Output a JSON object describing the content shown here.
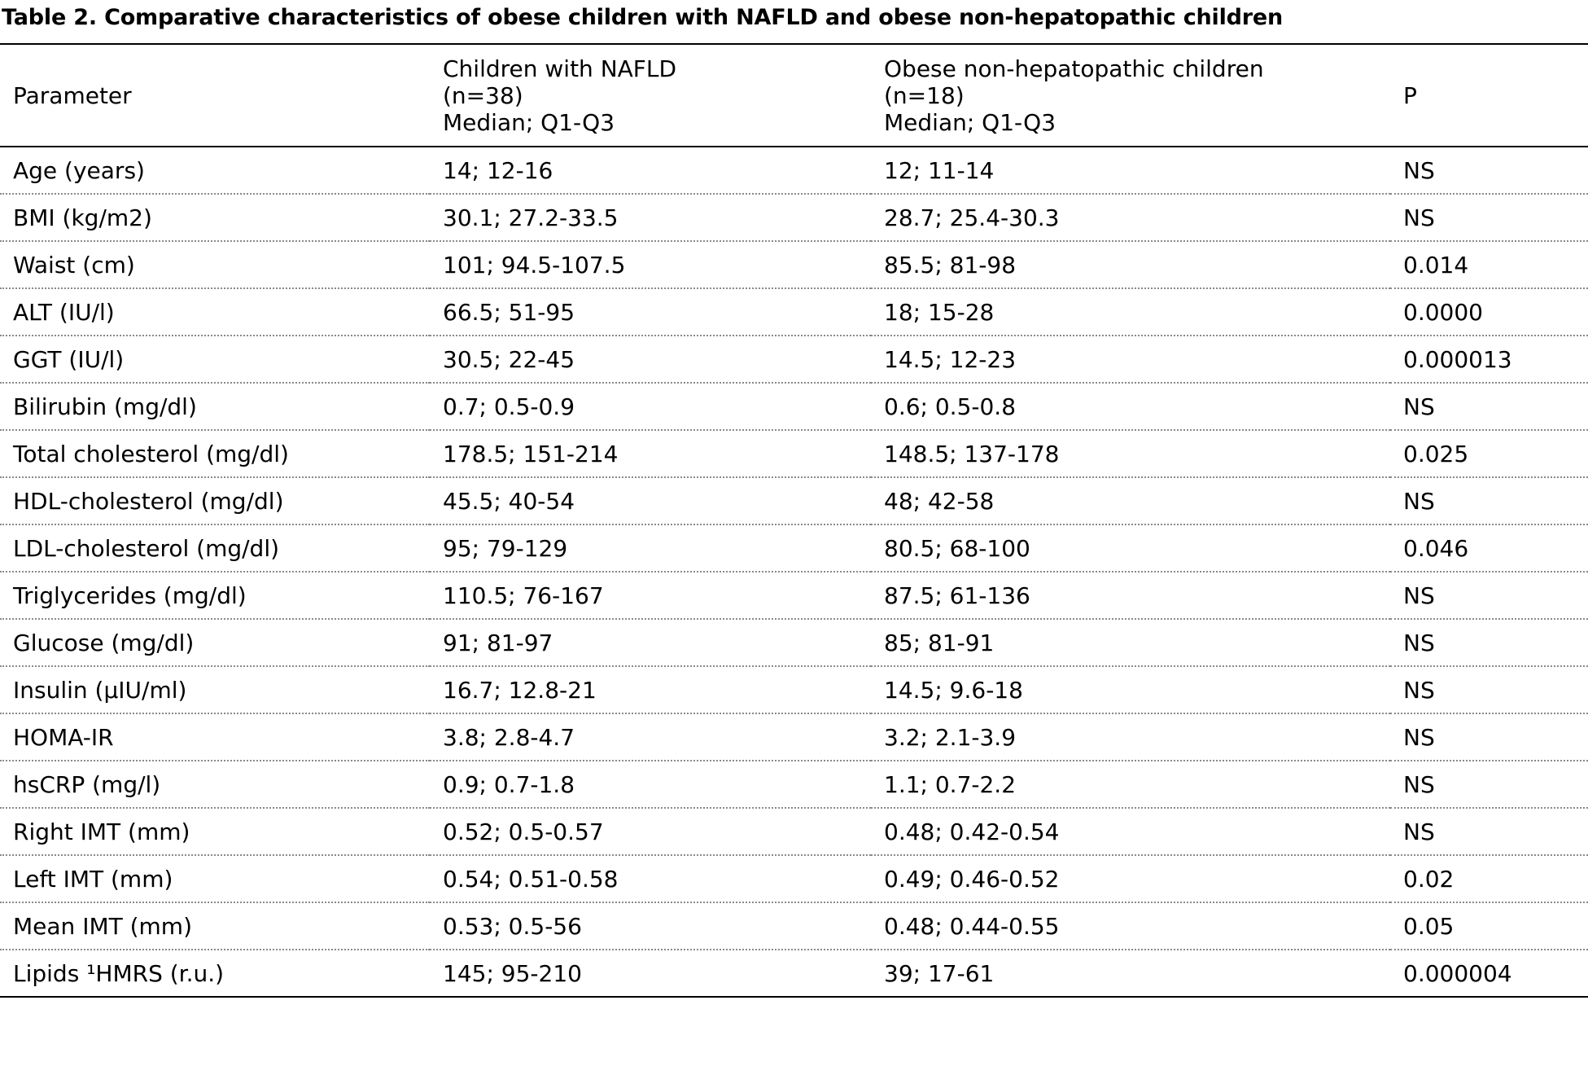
{
  "caption": "Table 2. Comparative characteristics of obese children with NAFLD and obese non-hepatopathic children",
  "columns": {
    "parameter": "Parameter",
    "nafld": [
      "Children with NAFLD",
      "(n=38)",
      "Median; Q1-Q3"
    ],
    "obese": [
      "Obese non-hepatopathic children",
      "(n=18)",
      "Median; Q1-Q3"
    ],
    "p": "P"
  },
  "rows": [
    [
      "Age (years)",
      "14; 12-16",
      "12; 11-14",
      "NS"
    ],
    [
      "BMI (kg/m2)",
      "30.1; 27.2-33.5",
      "28.7; 25.4-30.3",
      "NS"
    ],
    [
      "Waist (cm)",
      "101; 94.5-107.5",
      "85.5; 81-98",
      "0.014"
    ],
    [
      "ALT (IU/l)",
      "66.5; 51-95",
      "18; 15-28",
      "0.0000"
    ],
    [
      "GGT (IU/l)",
      "30.5; 22-45",
      "14.5; 12-23",
      "0.000013"
    ],
    [
      "Bilirubin (mg/dl)",
      "0.7; 0.5-0.9",
      "0.6; 0.5-0.8",
      "NS"
    ],
    [
      "Total cholesterol (mg/dl)",
      "178.5; 151-214",
      "148.5; 137-178",
      "0.025"
    ],
    [
      "HDL-cholesterol (mg/dl)",
      "45.5; 40-54",
      "48; 42-58",
      "NS"
    ],
    [
      "LDL-cholesterol (mg/dl)",
      "95; 79-129",
      "80.5; 68-100",
      "0.046"
    ],
    [
      "Triglycerides (mg/dl)",
      "110.5; 76-167",
      "87.5; 61-136",
      "NS"
    ],
    [
      "Glucose (mg/dl)",
      "91; 81-97",
      "85; 81-91",
      "NS"
    ],
    [
      "Insulin (µIU/ml)",
      "16.7; 12.8-21",
      "14.5; 9.6-18",
      "NS"
    ],
    [
      "HOMA-IR",
      "3.8; 2.8-4.7",
      "3.2; 2.1-3.9",
      "NS"
    ],
    [
      "hsCRP (mg/l)",
      "0.9; 0.7-1.8",
      "1.1; 0.7-2.2",
      "NS"
    ],
    [
      "Right IMT (mm)",
      "0.52; 0.5-0.57",
      "0.48; 0.42-0.54",
      "NS"
    ],
    [
      "Left IMT (mm)",
      "0.54; 0.51-0.58",
      "0.49; 0.46-0.52",
      "0.02"
    ],
    [
      "Mean IMT (mm)",
      "0.53; 0.5-56",
      "0.48; 0.44-0.55",
      "0.05"
    ],
    [
      "Lipids ¹HMRS (r.u.)",
      "145; 95-210",
      "39; 17-61",
      "0.000004"
    ]
  ]
}
